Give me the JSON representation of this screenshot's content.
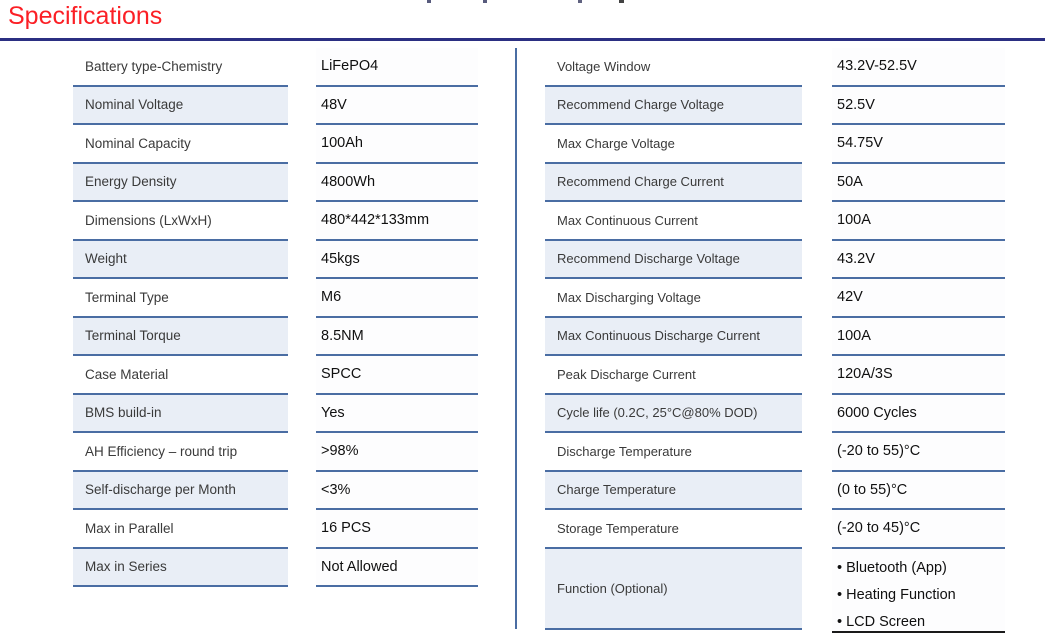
{
  "page": {
    "title": "Specifications"
  },
  "colors": {
    "title_red": "#fb1f25",
    "rule_navy": "#2b2f82",
    "separator_blue": "#4a6da3",
    "label_shade_blue": "#e9eef6",
    "function_row_bottom_black": "#1a1a1a"
  },
  "tables": {
    "left": {
      "rows": [
        {
          "label": "Battery type-Chemistry",
          "value": "LiFePO4"
        },
        {
          "label": "Nominal Voltage",
          "value": "48V"
        },
        {
          "label": "Nominal Capacity",
          "value": "100Ah"
        },
        {
          "label": "Energy Density",
          "value": "4800Wh"
        },
        {
          "label": "Dimensions (LxWxH)",
          "value": "480*442*133mm"
        },
        {
          "label": "Weight",
          "value": "45kgs"
        },
        {
          "label": "Terminal Type",
          "value": "M6"
        },
        {
          "label": "Terminal Torque",
          "value": "8.5NM"
        },
        {
          "label": "Case Material",
          "value": "SPCC"
        },
        {
          "label": "BMS build-in",
          "value": "Yes"
        },
        {
          "label": "AH Efficiency – round trip",
          "value": ">98%"
        },
        {
          "label": "Self-discharge per Month",
          "value": "<3%"
        },
        {
          "label": "Max in Parallel",
          "value": "16 PCS"
        },
        {
          "label": "Max in Series",
          "value": "Not Allowed"
        }
      ]
    },
    "right": {
      "rows": [
        {
          "label": "Voltage Window",
          "value": "43.2V-52.5V"
        },
        {
          "label": "Recommend Charge Voltage",
          "value": "52.5V"
        },
        {
          "label": "Max Charge Voltage",
          "value": "54.75V"
        },
        {
          "label": "Recommend Charge Current",
          "value": "50A"
        },
        {
          "label": "Max Continuous Current",
          "value": "100A"
        },
        {
          "label": "Recommend Discharge Voltage",
          "value": "43.2V"
        },
        {
          "label": "Max Discharging Voltage",
          "value": "42V"
        },
        {
          "label": "Max Continuous Discharge Current",
          "value": "100A"
        },
        {
          "label": "Peak Discharge Current",
          "value": "120A/3S"
        },
        {
          "label": "Cycle life (0.2C, 25°C@80% DOD)",
          "value": "6000 Cycles"
        },
        {
          "label": "Discharge Temperature",
          "value": "(-20 to 55)°C"
        },
        {
          "label": "Charge Temperature",
          "value": "(0 to 55)°C"
        },
        {
          "label": "Storage Temperature",
          "value": "(-20 to 45)°C"
        },
        {
          "label": "Function (Optional)",
          "value_lines": [
            "• Bluetooth (App)",
            "• Heating Function",
            "• LCD Screen"
          ],
          "tall": true,
          "value_border": "black"
        }
      ]
    }
  }
}
